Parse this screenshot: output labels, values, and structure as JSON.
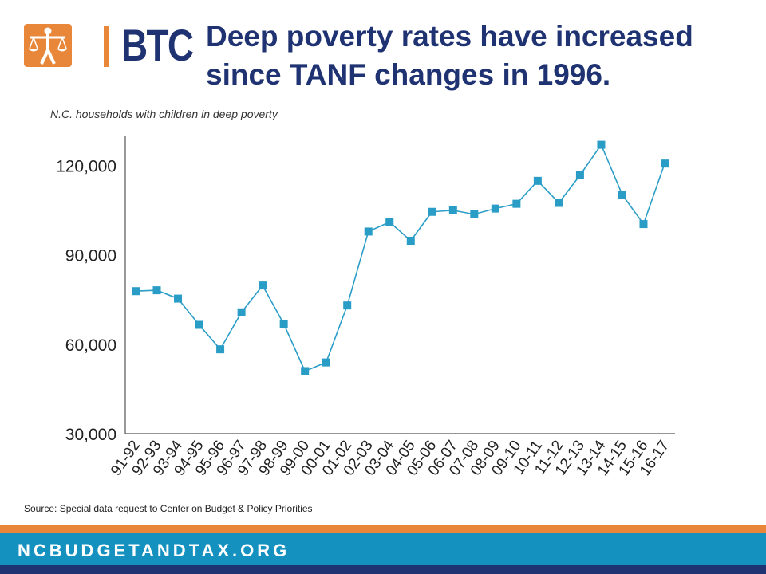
{
  "colors": {
    "accent_orange": "#e8873a",
    "title_navy": "#1f3272",
    "series_blue": "#2a9dc7",
    "footer_blue": "#1591c0",
    "footer_navy": "#1f3272",
    "axis_gray": "#555555"
  },
  "logo": {
    "text": "BTC",
    "icon": "scales-of-justice-person-icon"
  },
  "title": "Deep poverty rates have increased since TANF changes in 1996.",
  "source": "Source: Special data request to Center on Budget & Policy Priorities",
  "footer": {
    "url": "NCBUDGETANDTAX.ORG"
  },
  "chart_data": {
    "type": "line",
    "title": "N.C. households with children in deep poverty",
    "xlabel": "",
    "ylabel": "",
    "ylim": [
      30000,
      130000
    ],
    "yticks": [
      30000,
      60000,
      90000,
      120000
    ],
    "ytick_labels": [
      "30,000",
      "60,000",
      "90,000",
      "120,000"
    ],
    "grid": false,
    "legend": "none",
    "marker": "square",
    "categories": [
      "91-92",
      "92-93",
      "93-94",
      "94-95",
      "95-96",
      "96-97",
      "97-98",
      "98-99",
      "99-00",
      "00-01",
      "01-02",
      "02-03",
      "03-04",
      "04-05",
      "05-06",
      "06-07",
      "07-08",
      "08-09",
      "09-10",
      "10-11",
      "11-12",
      "12-13",
      "13-14",
      "14-15",
      "15-16",
      "16-17"
    ],
    "series": [
      {
        "values": [
          77800,
          78100,
          75300,
          66500,
          58300,
          70700,
          79700,
          66800,
          51000,
          53900,
          73000,
          97800,
          101000,
          94700,
          104400,
          104900,
          103600,
          105500,
          107100,
          114800,
          107400,
          116700,
          126900,
          110100,
          100300,
          120600
        ]
      }
    ]
  }
}
